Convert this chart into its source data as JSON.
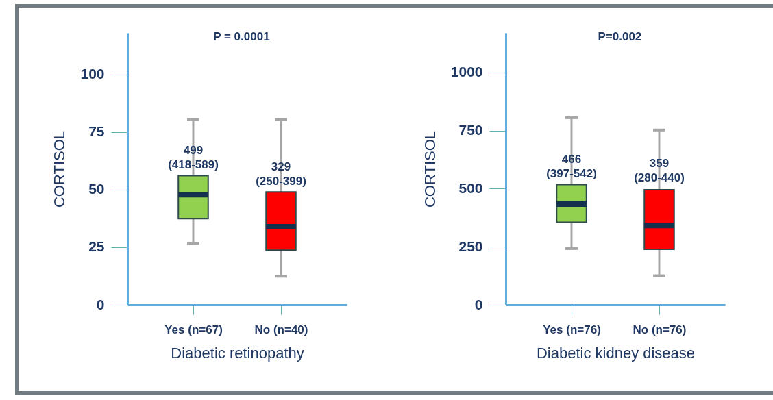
{
  "chart_data": [
    {
      "type": "box",
      "xlabel": "Diabetic retinopathy",
      "ylabel": "CORTISOL",
      "categories": [
        "Yes (n=67)",
        "No (n=40)"
      ],
      "colors": [
        "#92d050",
        "#ff0000"
      ],
      "boxes": [
        {
          "low": 26.7,
          "q1": 37.4,
          "median": 47.8,
          "q3": 56,
          "high": 80.4
        },
        {
          "low": 12.4,
          "q1": 23.7,
          "median": 33.9,
          "q3": 49,
          "high": 80.4
        }
      ],
      "ylim": [
        0,
        118
      ],
      "yticks": [
        0,
        25,
        50,
        75,
        100
      ],
      "annotations": [
        "P = 0.0001",
        {
          "text": "499\n(418-589)",
          "x": "Yes (n=67)",
          "y": 65
        },
        {
          "text": "329\n(250-399)",
          "x": "No (n=40)",
          "y": 58
        }
      ]
    },
    {
      "type": "box",
      "xlabel": "Diabetic kidney disease",
      "ylabel": "CORTISOL",
      "categories": [
        "Yes (n=76)",
        "No (n=76)"
      ],
      "colors": [
        "#92d050",
        "#ff0000"
      ],
      "boxes": [
        {
          "low": 242,
          "q1": 355,
          "median": 433,
          "q3": 517,
          "high": 805
        },
        {
          "low": 125,
          "q1": 239,
          "median": 341,
          "q3": 495,
          "high": 752
        }
      ],
      "ylim": [
        0,
        1170
      ],
      "yticks": [
        0,
        250,
        500,
        750,
        1000
      ],
      "annotations": [
        "P=0.002",
        {
          "text": "466\n(397-542)",
          "x": "Yes (n=76)",
          "y": 608
        },
        {
          "text": "359\n(280-440)",
          "x": "No (n=76)",
          "y": 588
        }
      ]
    }
  ]
}
